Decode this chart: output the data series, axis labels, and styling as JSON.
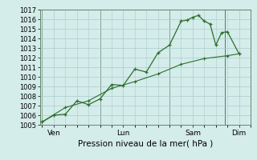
{
  "background_color": "#d4ecea",
  "grid_color": "#aacccc",
  "line_color": "#2d6e2d",
  "marker_color": "#2d6e2d",
  "ylabel_min": 1005,
  "ylabel_max": 1017,
  "ytick_step": 1,
  "xlabel": "Pression niveau de la mer( hPa )",
  "xtick_labels": [
    "Ven",
    "Lun",
    "Sam",
    "Dim"
  ],
  "xtick_positions": [
    0.5,
    3.5,
    6.5,
    8.5
  ],
  "series1_x": [
    0.0,
    0.5,
    1.0,
    1.5,
    2.0,
    2.5,
    3.0,
    3.5,
    4.0,
    4.5,
    5.0,
    5.5,
    6.0,
    6.25,
    6.5,
    6.75,
    7.0,
    7.25,
    7.5,
    7.75,
    8.0,
    8.5
  ],
  "series1_y": [
    1005.3,
    1006.0,
    1006.1,
    1007.5,
    1007.1,
    1007.7,
    1009.2,
    1009.1,
    1010.8,
    1010.5,
    1012.5,
    1013.3,
    1015.8,
    1015.9,
    1016.2,
    1016.4,
    1015.8,
    1015.5,
    1013.3,
    1014.6,
    1014.7,
    1012.4
  ],
  "series2_x": [
    0.0,
    1.0,
    2.0,
    3.0,
    4.0,
    5.0,
    6.0,
    7.0,
    8.0,
    8.5
  ],
  "series2_y": [
    1005.3,
    1006.8,
    1007.5,
    1008.8,
    1009.5,
    1010.3,
    1011.3,
    1011.9,
    1012.2,
    1012.4
  ],
  "vline_positions": [
    0.0,
    2.5,
    5.5,
    7.9
  ],
  "xlim_left": -0.1,
  "xlim_right": 9.0
}
